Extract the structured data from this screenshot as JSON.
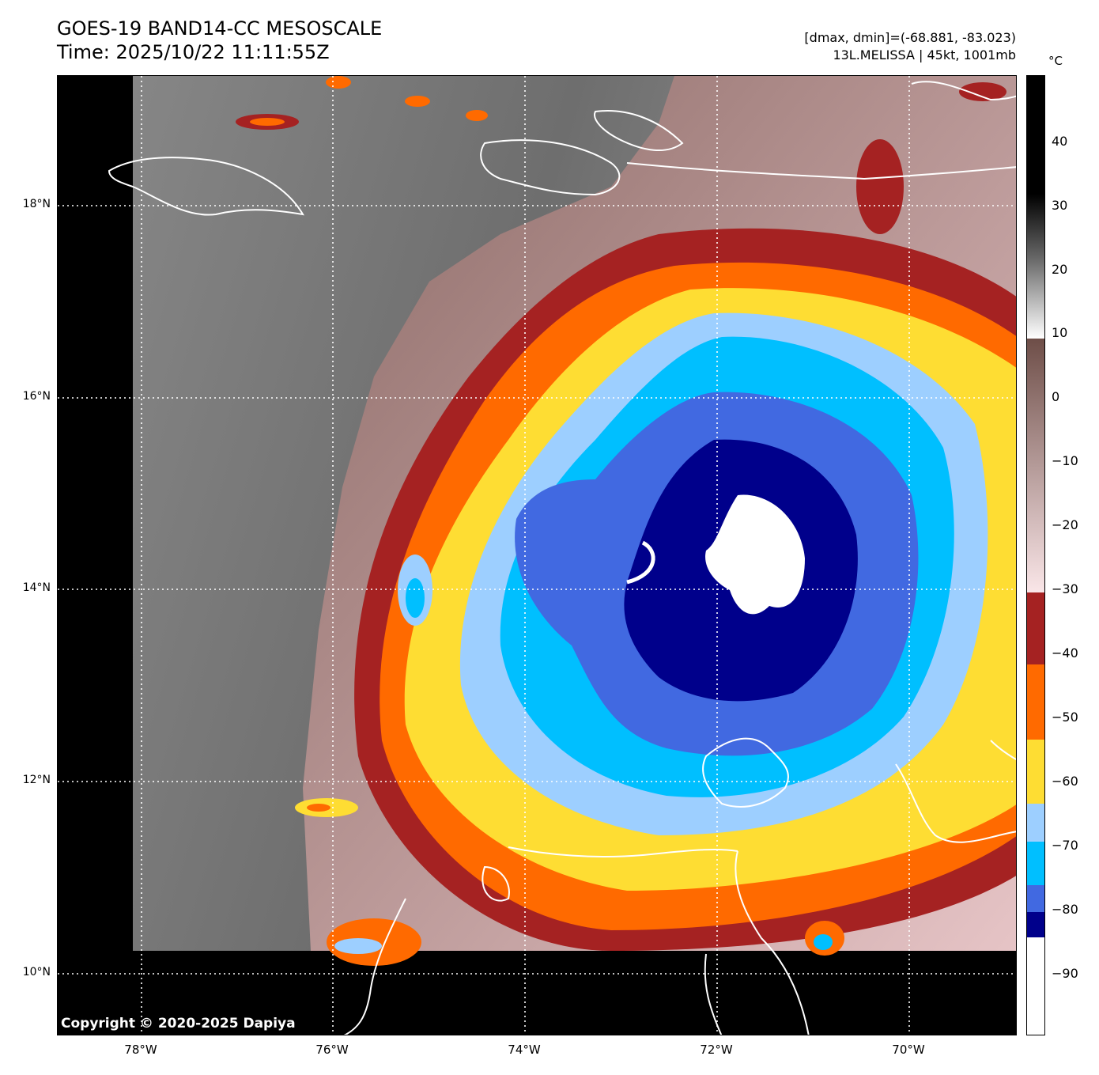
{
  "header": {
    "title_line1": "GOES-19 BAND14-CC MESOSCALE",
    "title_line2": "Time: 2025/10/22 11:11:55Z",
    "range_text": "[dmax, dmin]=(-68.881, -83.023)",
    "storm_text": "13L.MELISSA | 45kt, 1001mb"
  },
  "map": {
    "lat_ticks": [
      "18°N",
      "16°N",
      "14°N",
      "12°N",
      "10°N"
    ],
    "lon_ticks": [
      "78°W",
      "76°W",
      "74°W",
      "72°W",
      "70°W"
    ],
    "copyright": "Copyright © 2020-2025 Dapiya",
    "center_lat": 14.0,
    "center_lon": -72.5
  },
  "colorbar": {
    "unit": "°C",
    "tick_labels": [
      "40",
      "30",
      "20",
      "10",
      "0",
      "−10",
      "−20",
      "−30",
      "−40",
      "−50",
      "−60",
      "−70",
      "−80",
      "−90"
    ],
    "range": [
      -100,
      50
    ],
    "colors": {
      "band_-30_-40": "#a52222",
      "band_-40_-50": "#ff6a00",
      "band_-50_-60": "#fedd33",
      "band_-60_-65": "#9dcfff",
      "band_-65_-75": "#00bfff",
      "band_-75_-80": "#4169e1",
      "band_-80_-84": "#00008b",
      "below_-84": "#ffffff",
      "warm_brown": "#7a5a54",
      "pink": "#f3d9db",
      "gray_high": "#ffffff",
      "gray_low": "#000000"
    }
  }
}
